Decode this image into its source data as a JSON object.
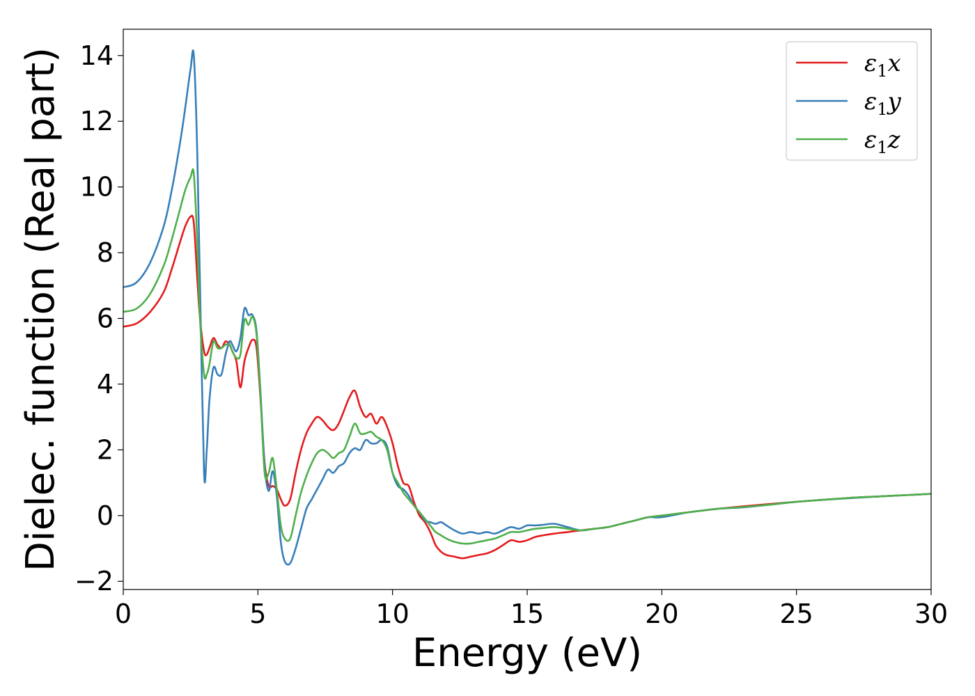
{
  "chart_data": {
    "type": "line",
    "title": "",
    "xlabel": "Energy (eV)",
    "ylabel": "Dielec. function (Real part)",
    "xlim": [
      0,
      30
    ],
    "ylim": [
      -2.25,
      14.8
    ],
    "xticks": [
      0,
      5,
      10,
      15,
      20,
      25,
      30
    ],
    "yticks": [
      -2,
      0,
      2,
      4,
      6,
      8,
      10,
      12,
      14
    ],
    "grid": false,
    "legend_position": "top-right",
    "series": [
      {
        "name": "ε1x",
        "legend_sub": "1",
        "legend_base": "ε",
        "legend_axis": "x",
        "color": "#e41a1c",
        "x": [
          0,
          0.5,
          1.0,
          1.5,
          1.8,
          2.1,
          2.3,
          2.5,
          2.62,
          2.75,
          2.85,
          3.0,
          3.1,
          3.2,
          3.35,
          3.5,
          3.65,
          3.8,
          3.95,
          4.05,
          4.2,
          4.35,
          4.5,
          4.65,
          4.8,
          4.95,
          5.1,
          5.25,
          5.4,
          5.55,
          5.7,
          5.85,
          6.0,
          6.2,
          6.4,
          6.6,
          6.8,
          7.0,
          7.2,
          7.4,
          7.6,
          7.8,
          8.0,
          8.2,
          8.4,
          8.6,
          8.8,
          9.0,
          9.2,
          9.4,
          9.6,
          9.8,
          10.0,
          10.2,
          10.4,
          10.6,
          10.8,
          11.0,
          11.2,
          11.4,
          11.6,
          11.8,
          12.0,
          12.3,
          12.6,
          12.9,
          13.2,
          13.5,
          13.8,
          14.1,
          14.4,
          14.7,
          15.0,
          15.3,
          15.6,
          16.0,
          16.5,
          17.0,
          17.5,
          18.0,
          18.5,
          19.0,
          19.5,
          20.0,
          21.0,
          22.0,
          23.0,
          24.0,
          25.0,
          26.0,
          27.0,
          28.0,
          29.0,
          30.0
        ],
        "y": [
          5.75,
          5.85,
          6.2,
          6.8,
          7.5,
          8.3,
          8.8,
          9.1,
          8.9,
          7.2,
          6.0,
          5.0,
          4.9,
          5.1,
          5.4,
          5.2,
          5.1,
          5.3,
          5.2,
          5.0,
          4.7,
          3.9,
          4.7,
          5.1,
          5.35,
          5.1,
          3.5,
          1.6,
          0.9,
          0.9,
          0.8,
          0.5,
          0.3,
          0.5,
          1.3,
          2.0,
          2.5,
          2.8,
          3.0,
          2.9,
          2.7,
          2.6,
          2.8,
          3.2,
          3.6,
          3.8,
          3.3,
          3.0,
          3.1,
          2.8,
          3.0,
          2.7,
          2.2,
          1.5,
          1.0,
          0.9,
          0.4,
          0.0,
          -0.2,
          -0.5,
          -0.9,
          -1.1,
          -1.2,
          -1.25,
          -1.3,
          -1.25,
          -1.2,
          -1.15,
          -1.05,
          -0.9,
          -0.75,
          -0.8,
          -0.75,
          -0.65,
          -0.6,
          -0.55,
          -0.5,
          -0.45,
          -0.4,
          -0.35,
          -0.25,
          -0.15,
          -0.05,
          0.0,
          0.1,
          0.2,
          0.28,
          0.35,
          0.42,
          0.48,
          0.54,
          0.58,
          0.62,
          0.66
        ]
      },
      {
        "name": "ε1y",
        "legend_sub": "1",
        "legend_base": "ε",
        "legend_axis": "y",
        "color": "#377eb8",
        "x": [
          0,
          0.5,
          1.0,
          1.5,
          1.8,
          2.1,
          2.3,
          2.5,
          2.62,
          2.75,
          2.85,
          3.0,
          3.1,
          3.2,
          3.35,
          3.5,
          3.65,
          3.8,
          3.95,
          4.05,
          4.2,
          4.35,
          4.5,
          4.65,
          4.8,
          4.95,
          5.1,
          5.25,
          5.4,
          5.55,
          5.7,
          5.85,
          6.0,
          6.2,
          6.4,
          6.6,
          6.8,
          7.0,
          7.2,
          7.4,
          7.6,
          7.8,
          8.0,
          8.2,
          8.4,
          8.6,
          8.8,
          9.0,
          9.2,
          9.4,
          9.6,
          9.8,
          10.0,
          10.2,
          10.4,
          10.6,
          10.8,
          11.0,
          11.2,
          11.4,
          11.6,
          11.8,
          12.0,
          12.3,
          12.6,
          12.9,
          13.2,
          13.5,
          13.8,
          14.1,
          14.4,
          14.7,
          15.0,
          15.3,
          15.6,
          16.0,
          16.5,
          17.0,
          17.5,
          18.0,
          18.5,
          19.0,
          19.5,
          20.0,
          21.0,
          22.0,
          23.0,
          24.0,
          25.0,
          26.0,
          27.0,
          28.0,
          29.0,
          30.0
        ],
        "y": [
          6.95,
          7.1,
          7.7,
          8.8,
          9.9,
          11.3,
          12.4,
          13.6,
          14.0,
          11.0,
          7.0,
          1.3,
          2.0,
          3.5,
          4.5,
          4.3,
          4.3,
          4.9,
          5.3,
          5.2,
          5.0,
          5.4,
          6.3,
          6.1,
          6.1,
          5.6,
          3.7,
          1.5,
          0.75,
          1.35,
          0.6,
          -0.8,
          -1.4,
          -1.45,
          -1.0,
          -0.4,
          0.2,
          0.5,
          0.8,
          1.1,
          1.4,
          1.3,
          1.5,
          1.6,
          1.9,
          2.05,
          2.0,
          2.3,
          2.2,
          2.2,
          2.3,
          2.1,
          1.3,
          0.9,
          0.8,
          0.6,
          0.3,
          0.1,
          -0.15,
          -0.2,
          -0.25,
          -0.2,
          -0.3,
          -0.45,
          -0.55,
          -0.5,
          -0.55,
          -0.5,
          -0.55,
          -0.45,
          -0.35,
          -0.4,
          -0.3,
          -0.3,
          -0.28,
          -0.25,
          -0.35,
          -0.45,
          -0.4,
          -0.35,
          -0.25,
          -0.15,
          -0.05,
          -0.05,
          0.1,
          0.2,
          0.25,
          0.33,
          0.42,
          0.48,
          0.53,
          0.58,
          0.62,
          0.66
        ]
      },
      {
        "name": "ε1z",
        "legend_sub": "1",
        "legend_base": "ε",
        "legend_axis": "z",
        "color": "#4daf4a",
        "x": [
          0,
          0.5,
          1.0,
          1.5,
          1.8,
          2.1,
          2.3,
          2.5,
          2.62,
          2.75,
          2.85,
          3.0,
          3.1,
          3.2,
          3.35,
          3.5,
          3.65,
          3.8,
          3.95,
          4.05,
          4.2,
          4.35,
          4.5,
          4.65,
          4.8,
          4.95,
          5.1,
          5.25,
          5.4,
          5.55,
          5.7,
          5.85,
          6.0,
          6.2,
          6.4,
          6.6,
          6.8,
          7.0,
          7.2,
          7.4,
          7.6,
          7.8,
          8.0,
          8.2,
          8.4,
          8.6,
          8.8,
          9.0,
          9.2,
          9.4,
          9.6,
          9.8,
          10.0,
          10.2,
          10.4,
          10.6,
          10.8,
          11.0,
          11.2,
          11.4,
          11.6,
          11.8,
          12.0,
          12.3,
          12.6,
          12.9,
          13.2,
          13.5,
          13.8,
          14.1,
          14.4,
          14.7,
          15.0,
          15.3,
          15.6,
          16.0,
          16.5,
          17.0,
          17.5,
          18.0,
          18.5,
          19.0,
          19.5,
          20.0,
          21.0,
          22.0,
          23.0,
          24.0,
          25.0,
          26.0,
          27.0,
          28.0,
          29.0,
          30.0
        ],
        "y": [
          6.2,
          6.3,
          6.75,
          7.6,
          8.4,
          9.3,
          9.9,
          10.3,
          10.4,
          8.3,
          6.0,
          4.3,
          4.3,
          4.6,
          5.3,
          5.1,
          5.1,
          5.2,
          5.2,
          5.0,
          4.8,
          4.9,
          5.95,
          5.8,
          6.05,
          5.5,
          3.6,
          1.3,
          1.3,
          1.75,
          0.8,
          -0.3,
          -0.7,
          -0.7,
          0.0,
          0.7,
          1.2,
          1.6,
          1.9,
          2.0,
          1.9,
          1.75,
          1.9,
          2.0,
          2.4,
          2.8,
          2.5,
          2.5,
          2.55,
          2.4,
          2.3,
          2.0,
          1.3,
          1.0,
          0.7,
          0.5,
          0.3,
          0.1,
          -0.1,
          -0.3,
          -0.5,
          -0.6,
          -0.7,
          -0.8,
          -0.85,
          -0.85,
          -0.8,
          -0.75,
          -0.7,
          -0.6,
          -0.5,
          -0.5,
          -0.45,
          -0.4,
          -0.38,
          -0.35,
          -0.4,
          -0.45,
          -0.4,
          -0.35,
          -0.25,
          -0.15,
          -0.05,
          0.0,
          0.1,
          0.2,
          0.26,
          0.33,
          0.42,
          0.48,
          0.54,
          0.58,
          0.62,
          0.66
        ]
      }
    ]
  }
}
